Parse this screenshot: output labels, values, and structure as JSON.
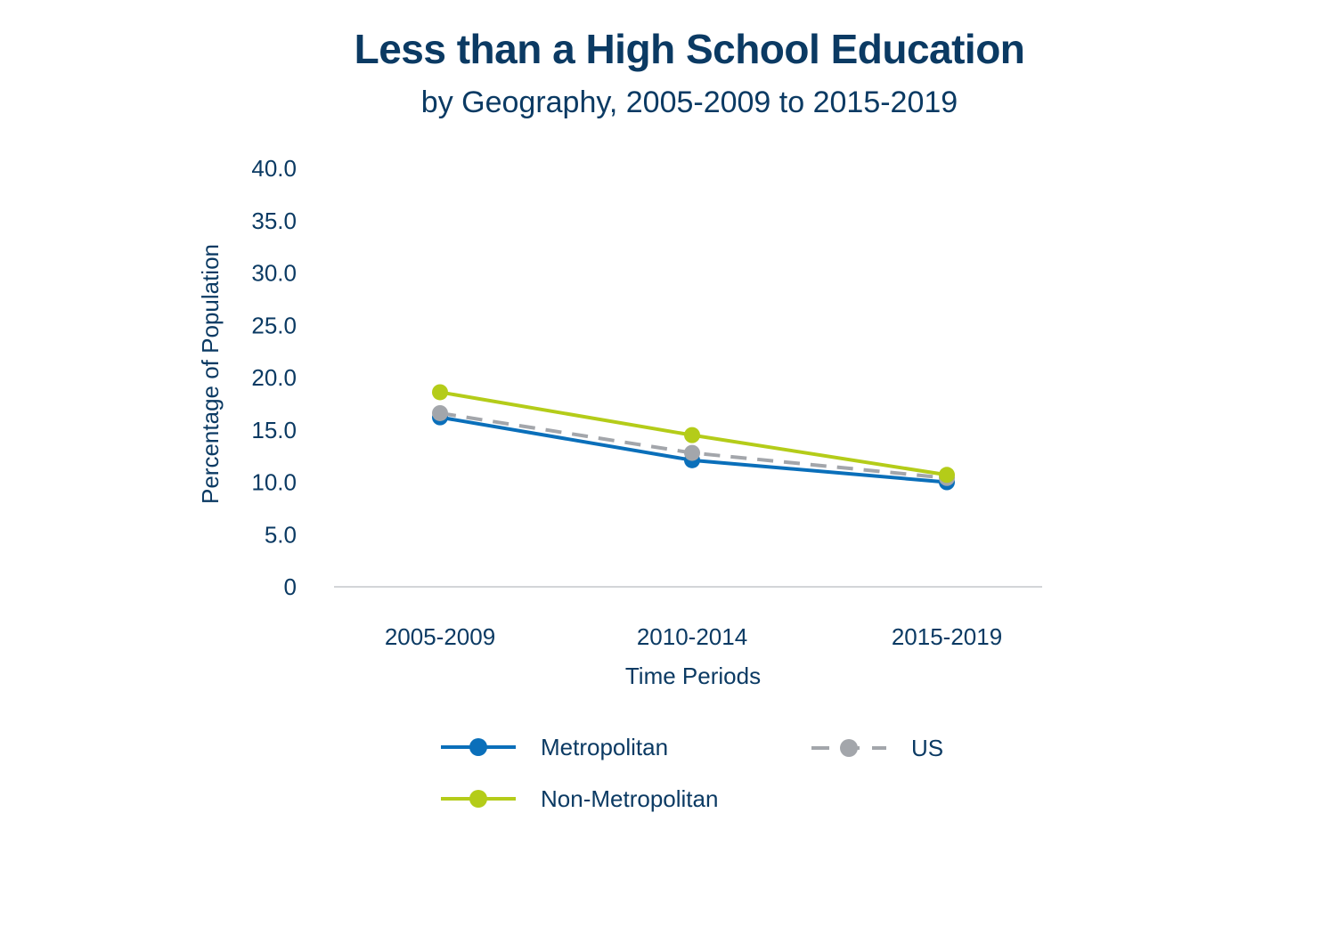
{
  "chart_data": {
    "type": "line",
    "title": "Less than a High School Education",
    "subtitle": "by Geography, 2005-2009 to 2015-2019",
    "xlabel": "Time Periods",
    "ylabel": "Percentage of Population",
    "categories": [
      "2005-2009",
      "2010-2014",
      "2015-2019"
    ],
    "ylim": [
      0,
      40
    ],
    "yticks": [
      {
        "value": 0,
        "label": "0"
      },
      {
        "value": 5,
        "label": "5.0"
      },
      {
        "value": 10,
        "label": "10.0"
      },
      {
        "value": 15,
        "label": "15.0"
      },
      {
        "value": 20,
        "label": "20.0"
      },
      {
        "value": 25,
        "label": "25.0"
      },
      {
        "value": 30,
        "label": "30.0"
      },
      {
        "value": 35,
        "label": "35.0"
      },
      {
        "value": 40,
        "label": "40.0"
      }
    ],
    "grid": false,
    "legend_position": "bottom",
    "series": [
      {
        "name": "Metropolitan",
        "values": [
          16.2,
          12.1,
          10.0
        ],
        "color": "#0a6fba",
        "dashed": false
      },
      {
        "name": "US",
        "values": [
          16.6,
          12.8,
          10.4
        ],
        "color": "#a3a6ab",
        "dashed": true
      },
      {
        "name": "Non-Metropolitan",
        "values": [
          18.6,
          14.5,
          10.7
        ],
        "color": "#b4cc19",
        "dashed": false
      }
    ]
  }
}
